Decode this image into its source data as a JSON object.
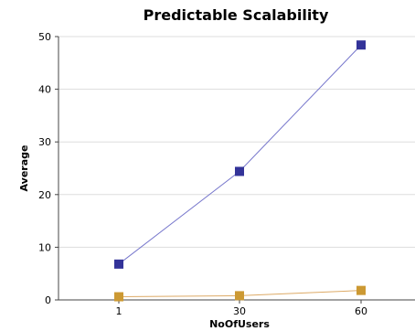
{
  "chart_data": {
    "type": "line",
    "title": "Predictable Scalability",
    "xlabel": "NoOfUsers",
    "ylabel": "Average",
    "categories": [
      "1",
      "30",
      "60"
    ],
    "ylim": [
      0,
      50
    ],
    "yticks": [
      "0",
      "10",
      "20",
      "30",
      "40",
      "50"
    ],
    "grid": true,
    "series": [
      {
        "values": [
          6.8,
          24.4,
          48.4
        ],
        "color": "#333399",
        "line_color": "#7777cc"
      },
      {
        "values": [
          0.6,
          0.8,
          1.8
        ],
        "color": "#cc9933",
        "line_color": "#ddaa66"
      }
    ]
  }
}
